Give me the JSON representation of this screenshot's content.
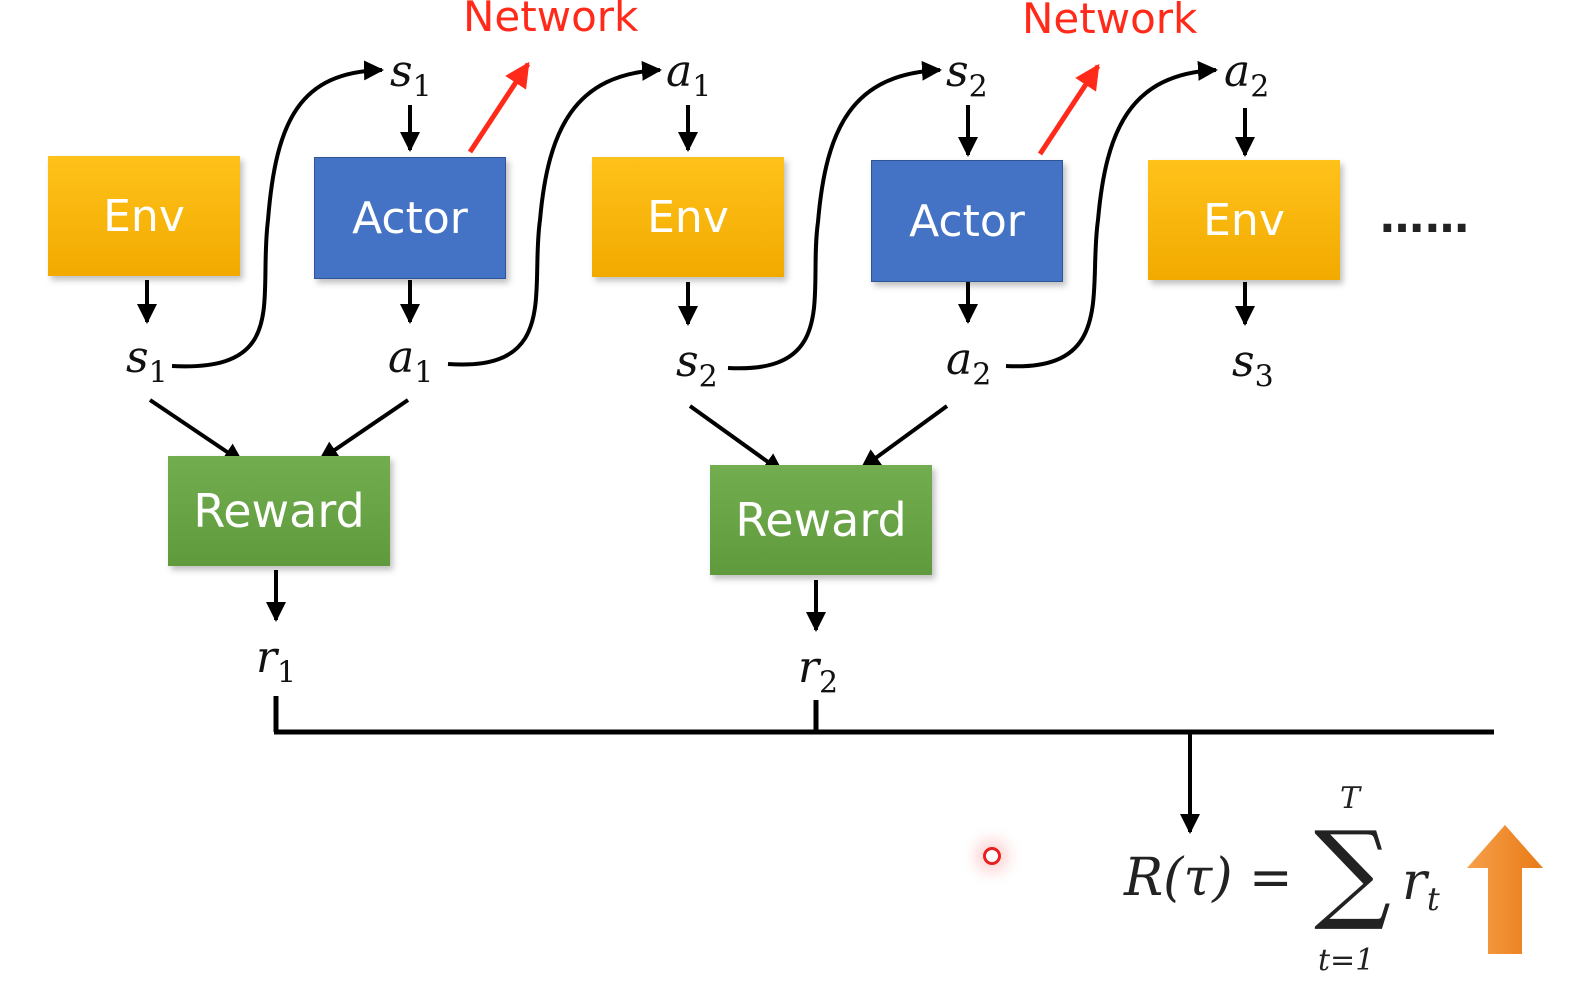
{
  "boxes": {
    "env1": "Env",
    "actor1": "Actor",
    "env2": "Env",
    "actor2": "Actor",
    "env3": "Env",
    "reward1": "Reward",
    "reward2": "Reward"
  },
  "network_labels": [
    "Network",
    "Network"
  ],
  "variables": {
    "s1": {
      "base": "s",
      "sub": "1"
    },
    "a1": {
      "base": "a",
      "sub": "1"
    },
    "s2": {
      "base": "s",
      "sub": "2"
    },
    "a2": {
      "base": "a",
      "sub": "2"
    },
    "s3": {
      "base": "s",
      "sub": "3"
    },
    "r1": {
      "base": "r",
      "sub": "1"
    },
    "r2": {
      "base": "r",
      "sub": "2"
    }
  },
  "ellipsis": "……",
  "formula": {
    "lhs": "R(τ) =",
    "sigma": "∑",
    "upper": "T",
    "lower": "t=1",
    "term": "r",
    "term_sub": "t"
  },
  "colors": {
    "env": "#f5b400",
    "actor": "#4472c4",
    "reward": "#6aa84f",
    "network_arrow": "#ff2a1a",
    "up_arrow": "#f08a24"
  },
  "icons": {
    "up_arrow": "orange-up-arrow-icon",
    "pointer": "laser-pointer-dot-icon"
  }
}
